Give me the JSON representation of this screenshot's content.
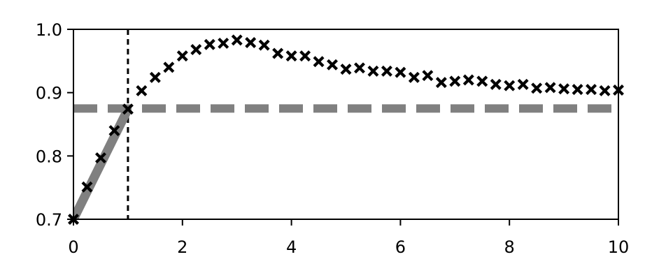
{
  "chart_data": {
    "type": "scatter",
    "title": "",
    "xlabel": "",
    "ylabel": "",
    "xlim": [
      0,
      10
    ],
    "ylim": [
      0.7,
      1.0
    ],
    "grid": false,
    "x_ticks": [
      0,
      2,
      4,
      6,
      8,
      10
    ],
    "x_tick_labels": [
      "0",
      "2",
      "4",
      "6",
      "8",
      "10"
    ],
    "y_ticks": [
      0.7,
      0.8,
      0.9,
      1.0
    ],
    "y_tick_labels": [
      "0.7",
      "0.8",
      "0.9",
      "1.0"
    ],
    "series": [
      {
        "kind": "markers",
        "marker": "x",
        "color": "#000000",
        "x": [
          0,
          0.25,
          0.5,
          0.75,
          1.0,
          1.25,
          1.5,
          1.75,
          2.0,
          2.25,
          2.5,
          2.75,
          3.0,
          3.25,
          3.5,
          3.75,
          4.0,
          4.25,
          4.5,
          4.75,
          5.0,
          5.25,
          5.5,
          5.75,
          6.0,
          6.25,
          6.5,
          6.75,
          7.0,
          7.25,
          7.5,
          7.75,
          8.0,
          8.25,
          8.5,
          8.75,
          9.0,
          9.25,
          9.5,
          9.75,
          10.0
        ],
        "y": [
          0.7,
          0.751,
          0.797,
          0.84,
          0.874,
          0.903,
          0.924,
          0.94,
          0.958,
          0.968,
          0.976,
          0.978,
          0.983,
          0.979,
          0.975,
          0.962,
          0.958,
          0.958,
          0.949,
          0.944,
          0.937,
          0.939,
          0.934,
          0.934,
          0.932,
          0.924,
          0.927,
          0.916,
          0.918,
          0.92,
          0.918,
          0.913,
          0.911,
          0.913,
          0.907,
          0.908,
          0.906,
          0.905,
          0.905,
          0.903,
          0.904
        ]
      },
      {
        "kind": "line",
        "color": "#808080",
        "x": [
          0,
          1.0
        ],
        "y": [
          0.7,
          0.874
        ]
      }
    ],
    "reference_lines": [
      {
        "orientation": "horizontal",
        "value": 0.875,
        "color": "#808080",
        "style": "dashed"
      },
      {
        "orientation": "vertical",
        "value": 1.0,
        "color": "#000000",
        "style": "dashed"
      }
    ]
  }
}
